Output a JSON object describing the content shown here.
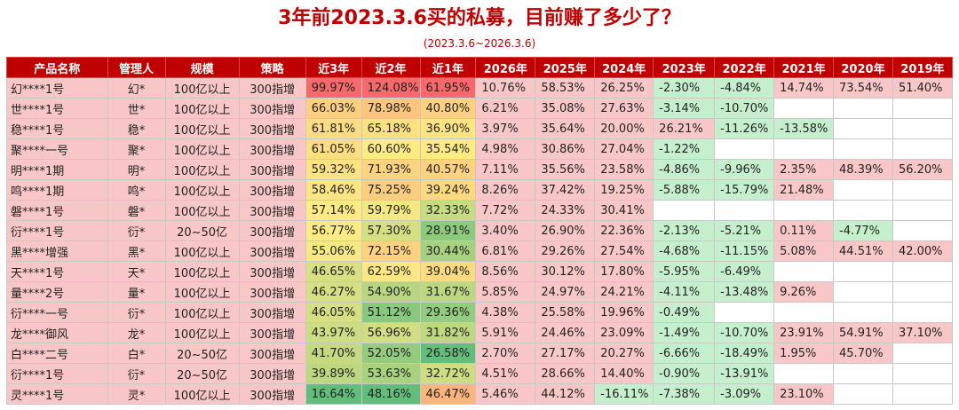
{
  "title": "3年前2023.3.6买的私募，目前赚了多少了？",
  "subtitle": "(2023.3.6~2026.3.6)",
  "colors": {
    "header_bg": "#c00000",
    "pos_strong": "#f8696b",
    "neutral": "#ffeb84",
    "green": "#63be7b",
    "pink_pos": "#f9c7c8",
    "green_neg": "#c6efce"
  },
  "headers": [
    "产品名称",
    "管理人",
    "规模",
    "策略",
    "近3年",
    "近2年",
    "近1年",
    "2026年",
    "2025年",
    "2024年",
    "2023年",
    "2022年",
    "2021年",
    "2020年",
    "2019年"
  ],
  "rows": [
    {
      "name": "幻****1号",
      "mgr": "幻*",
      "scale": "100亿以上",
      "strategy": "300指增",
      "r3": "99.97%",
      "r2": "124.08%",
      "r1": "61.95%",
      "y2026": "10.76%",
      "y2025": "58.53%",
      "y2024": "26.25%",
      "y2023": "-2.30%",
      "y2022": "-4.84%",
      "y2021": "14.74%",
      "y2020": "73.54%",
      "y2019": "51.40%"
    },
    {
      "name": "世****1号",
      "mgr": "世*",
      "scale": "100亿以上",
      "strategy": "300指增",
      "r3": "66.03%",
      "r2": "78.98%",
      "r1": "40.80%",
      "y2026": "6.21%",
      "y2025": "35.08%",
      "y2024": "27.63%",
      "y2023": "-3.14%",
      "y2022": "-10.70%",
      "y2021": "",
      "y2020": "",
      "y2019": ""
    },
    {
      "name": "稳****1号",
      "mgr": "稳*",
      "scale": "100亿以上",
      "strategy": "300指增",
      "r3": "61.81%",
      "r2": "65.18%",
      "r1": "36.90%",
      "y2026": "3.97%",
      "y2025": "35.64%",
      "y2024": "20.00%",
      "y2023": "26.21%",
      "y2022": "-11.26%",
      "y2021": "-13.58%",
      "y2020": "",
      "y2019": ""
    },
    {
      "name": "聚****一号",
      "mgr": "聚*",
      "scale": "100亿以上",
      "strategy": "300指增",
      "r3": "61.05%",
      "r2": "60.60%",
      "r1": "35.54%",
      "y2026": "4.98%",
      "y2025": "30.86%",
      "y2024": "27.04%",
      "y2023": "-1.22%",
      "y2022": "",
      "y2021": "",
      "y2020": "",
      "y2019": ""
    },
    {
      "name": "明****1期",
      "mgr": "明*",
      "scale": "100亿以上",
      "strategy": "300指增",
      "r3": "59.32%",
      "r2": "71.93%",
      "r1": "40.57%",
      "y2026": "7.11%",
      "y2025": "35.56%",
      "y2024": "23.58%",
      "y2023": "-4.86%",
      "y2022": "-9.96%",
      "y2021": "2.35%",
      "y2020": "48.39%",
      "y2019": "56.20%"
    },
    {
      "name": "鸣****1期",
      "mgr": "鸣*",
      "scale": "100亿以上",
      "strategy": "300指增",
      "r3": "58.46%",
      "r2": "75.25%",
      "r1": "39.24%",
      "y2026": "8.26%",
      "y2025": "37.42%",
      "y2024": "19.25%",
      "y2023": "-5.88%",
      "y2022": "-15.79%",
      "y2021": "21.48%",
      "y2020": "",
      "y2019": ""
    },
    {
      "name": "磐****1号",
      "mgr": "磐*",
      "scale": "100亿以上",
      "strategy": "300指增",
      "r3": "57.14%",
      "r2": "59.79%",
      "r1": "32.33%",
      "y2026": "7.72%",
      "y2025": "24.33%",
      "y2024": "30.41%",
      "y2023": "",
      "y2022": "",
      "y2021": "",
      "y2020": "",
      "y2019": ""
    },
    {
      "name": "衍****1号",
      "mgr": "衍*",
      "scale": "20~50亿",
      "strategy": "300指增",
      "r3": "56.77%",
      "r2": "57.30%",
      "r1": "28.91%",
      "y2026": "3.40%",
      "y2025": "26.90%",
      "y2024": "22.36%",
      "y2023": "-2.13%",
      "y2022": "-5.21%",
      "y2021": "0.11%",
      "y2020": "-4.77%",
      "y2019": ""
    },
    {
      "name": "黑****增强",
      "mgr": "黑*",
      "scale": "100亿以上",
      "strategy": "300指增",
      "r3": "55.06%",
      "r2": "72.15%",
      "r1": "30.44%",
      "y2026": "6.81%",
      "y2025": "29.26%",
      "y2024": "27.54%",
      "y2023": "-4.68%",
      "y2022": "-11.15%",
      "y2021": "5.08%",
      "y2020": "44.51%",
      "y2019": "42.00%"
    },
    {
      "name": "天****1号",
      "mgr": "天*",
      "scale": "100亿以上",
      "strategy": "300指增",
      "r3": "46.65%",
      "r2": "62.59%",
      "r1": "39.04%",
      "y2026": "8.56%",
      "y2025": "30.12%",
      "y2024": "17.80%",
      "y2023": "-5.95%",
      "y2022": "-6.49%",
      "y2021": "",
      "y2020": "",
      "y2019": ""
    },
    {
      "name": "量****2号",
      "mgr": "量*",
      "scale": "100亿以上",
      "strategy": "300指增",
      "r3": "46.27%",
      "r2": "54.90%",
      "r1": "31.67%",
      "y2026": "5.85%",
      "y2025": "24.97%",
      "y2024": "24.21%",
      "y2023": "-4.11%",
      "y2022": "-13.48%",
      "y2021": "9.26%",
      "y2020": "",
      "y2019": ""
    },
    {
      "name": "衍****一号",
      "mgr": "衍*",
      "scale": "100亿以上",
      "strategy": "300指增",
      "r3": "46.05%",
      "r2": "51.12%",
      "r1": "29.36%",
      "y2026": "4.38%",
      "y2025": "25.58%",
      "y2024": "19.96%",
      "y2023": "-0.49%",
      "y2022": "",
      "y2021": "",
      "y2020": "",
      "y2019": ""
    },
    {
      "name": "龙****御风",
      "mgr": "龙*",
      "scale": "100亿以上",
      "strategy": "300指增",
      "r3": "43.97%",
      "r2": "56.96%",
      "r1": "31.82%",
      "y2026": "5.91%",
      "y2025": "24.46%",
      "y2024": "23.09%",
      "y2023": "-1.49%",
      "y2022": "-10.70%",
      "y2021": "23.91%",
      "y2020": "54.91%",
      "y2019": "37.10%"
    },
    {
      "name": "白****二号",
      "mgr": "白*",
      "scale": "20~50亿",
      "strategy": "300指增",
      "r3": "41.70%",
      "r2": "52.05%",
      "r1": "26.58%",
      "y2026": "2.70%",
      "y2025": "27.17%",
      "y2024": "20.27%",
      "y2023": "-6.66%",
      "y2022": "-18.49%",
      "y2021": "1.95%",
      "y2020": "45.70%",
      "y2019": ""
    },
    {
      "name": "衍****1号",
      "mgr": "衍*",
      "scale": "20~50亿",
      "strategy": "300指增",
      "r3": "39.89%",
      "r2": "53.63%",
      "r1": "32.72%",
      "y2026": "4.51%",
      "y2025": "28.66%",
      "y2024": "14.40%",
      "y2023": "-0.90%",
      "y2022": "-13.91%",
      "y2021": "",
      "y2020": "",
      "y2019": ""
    },
    {
      "name": "灵****1号",
      "mgr": "灵*",
      "scale": "100亿以上",
      "strategy": "300指增",
      "r3": "16.64%",
      "r2": "48.16%",
      "r1": "46.47%",
      "y2026": "5.46%",
      "y2025": "44.12%",
      "y2024": "-16.11%",
      "y2023": "-7.38%",
      "y2022": "-3.09%",
      "y2021": "23.10%",
      "y2020": "",
      "y2019": ""
    }
  ]
}
